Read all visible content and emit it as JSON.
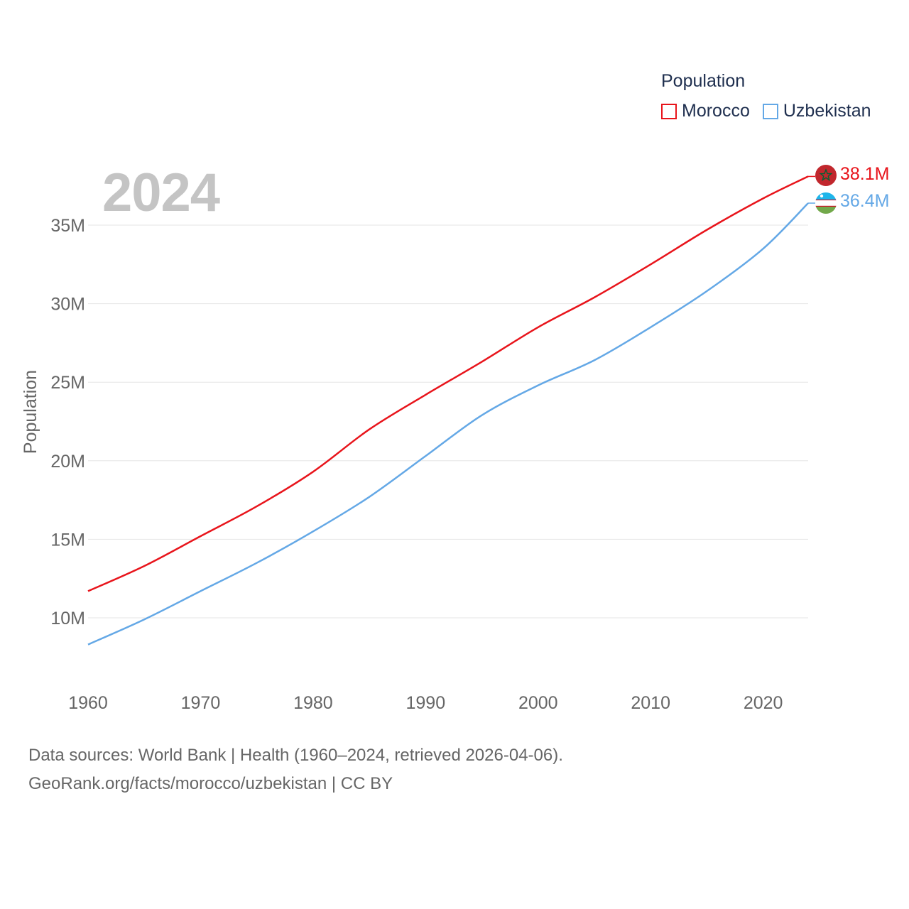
{
  "legend": {
    "title": "Population",
    "items": [
      {
        "label": "Morocco",
        "color": "#e8141b"
      },
      {
        "label": "Uzbekistan",
        "color": "#64a8e6"
      }
    ]
  },
  "year_label": "2024",
  "end_labels": {
    "morocco": "38.1M",
    "uzbekistan": "36.4M"
  },
  "footer": {
    "line1": "Data sources: World Bank | Health (1960–2024, retrieved 2026-04-06).",
    "line2": "GeoRank.org/facts/morocco/uzbekistan | CC BY"
  },
  "chart_data": {
    "type": "line",
    "title": "",
    "xlabel": "",
    "ylabel": "Population",
    "xlim": [
      1960,
      2024
    ],
    "ylim": [
      6500000,
      38500000
    ],
    "y_ticks": [
      10000000,
      15000000,
      20000000,
      25000000,
      30000000,
      35000000
    ],
    "y_tick_labels": [
      "10M",
      "15M",
      "20M",
      "25M",
      "30M",
      "35M"
    ],
    "x_ticks": [
      1960,
      1970,
      1980,
      1990,
      2000,
      2010,
      2020
    ],
    "x_tick_labels": [
      "1960",
      "1970",
      "1980",
      "1990",
      "2000",
      "2010",
      "2020"
    ],
    "x": [
      1960,
      1965,
      1970,
      1975,
      1980,
      1985,
      1990,
      1995,
      2000,
      2005,
      2010,
      2015,
      2020,
      2024
    ],
    "series": [
      {
        "name": "Morocco",
        "color": "#e8141b",
        "values": [
          11700000,
          13300000,
          15200000,
          17100000,
          19300000,
          22000000,
          24200000,
          26300000,
          28500000,
          30400000,
          32500000,
          34700000,
          36700000,
          38100000
        ]
      },
      {
        "name": "Uzbekistan",
        "color": "#64a8e6",
        "values": [
          8300000,
          9900000,
          11700000,
          13500000,
          15500000,
          17700000,
          20300000,
          22900000,
          24800000,
          26400000,
          28500000,
          30800000,
          33500000,
          36400000
        ]
      }
    ],
    "grid": true
  }
}
